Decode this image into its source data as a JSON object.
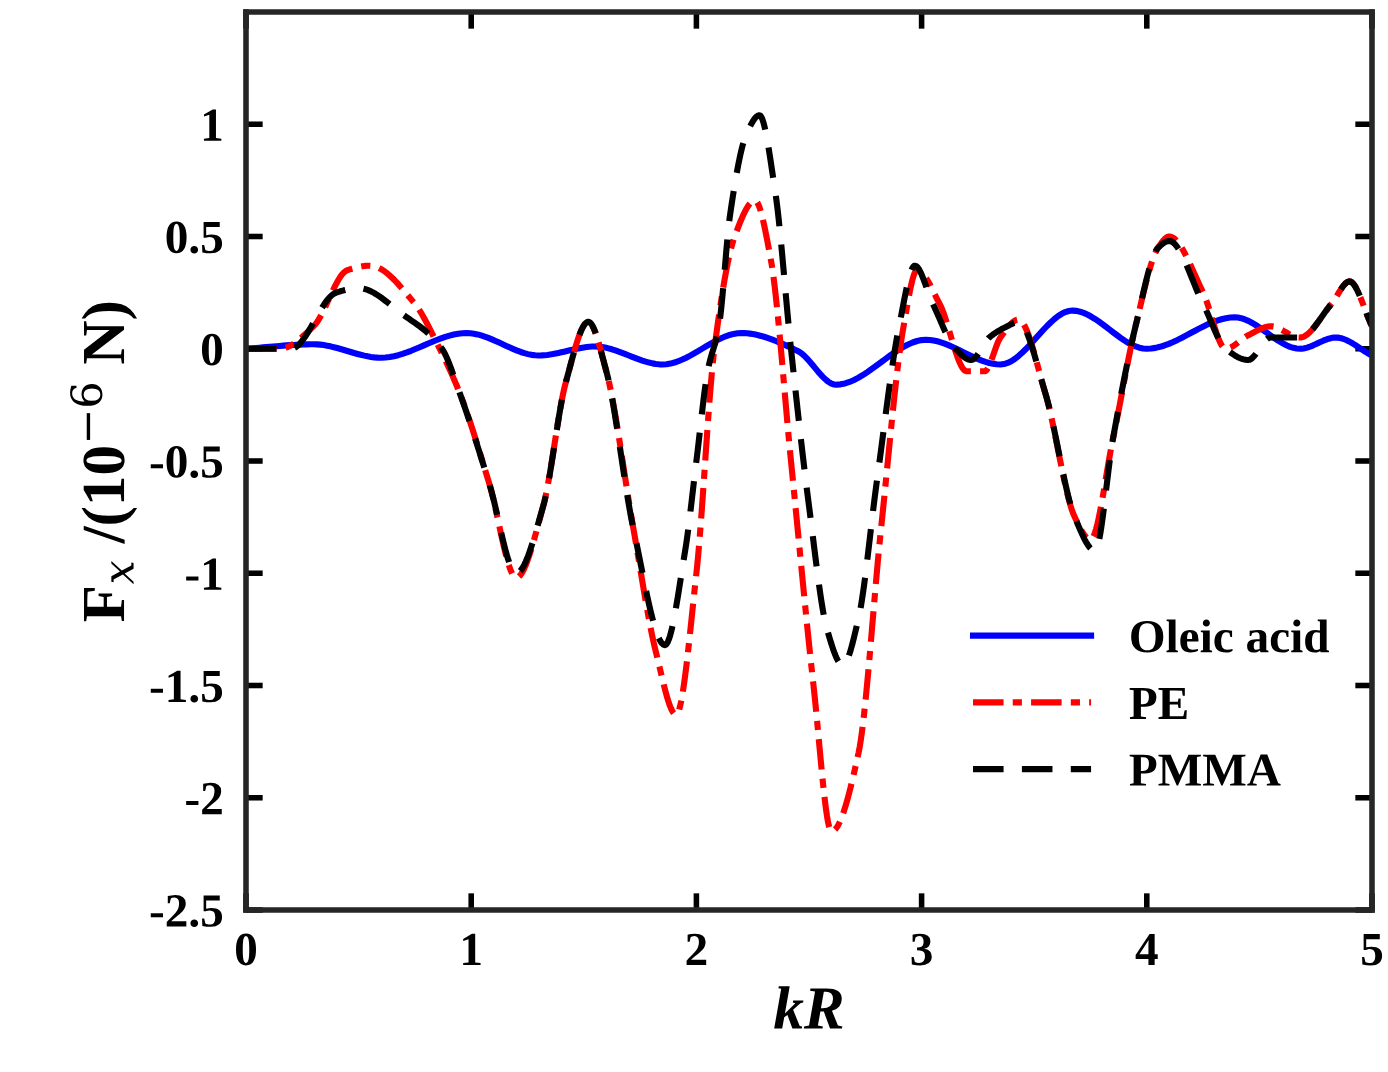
{
  "chart_data": {
    "type": "line",
    "xlabel": "kR",
    "ylabel": "F$_{x}$ /(10$^{−6}$ N)",
    "xlim": [
      0,
      5
    ],
    "xticks": [
      0,
      1,
      2,
      3,
      4,
      5
    ],
    "ylim": [
      -2.5,
      1.5
    ],
    "yticks": [
      -2.5,
      -2,
      -1.5,
      -1,
      -0.5,
      0,
      0.5,
      1
    ],
    "grid": false,
    "legend": "bottom right",
    "marker": "none",
    "series": [
      {
        "name": "Oleic acid",
        "color": "#0000ff",
        "line_style": "solid",
        "x": [
          0,
          0.3,
          0.6,
          0.98,
          1.3,
          1.55,
          1.85,
          2.2,
          2.45,
          2.62,
          3.02,
          3.35,
          3.67,
          4.0,
          4.39,
          4.68,
          4.84,
          5.0
        ],
        "values": [
          0,
          0.02,
          -0.04,
          0.07,
          -0.03,
          0.01,
          -0.07,
          0.07,
          -0.01,
          -0.16,
          0.04,
          -0.07,
          0.17,
          0.0,
          0.14,
          0.0,
          0.05,
          -0.03
        ]
      },
      {
        "name": "PE",
        "color": "#ff0000",
        "line_style": "dashdot",
        "x": [
          0,
          0.15,
          0.3,
          0.45,
          0.55,
          0.75,
          0.85,
          0.95,
          1.08,
          1.2,
          1.32,
          1.42,
          1.52,
          1.6,
          1.72,
          1.82,
          1.91,
          2.0,
          2.08,
          2.17,
          2.26,
          2.33,
          2.42,
          2.52,
          2.6,
          2.72,
          2.82,
          2.92,
          2.98,
          3.08,
          3.2,
          3.28,
          3.35,
          3.43,
          3.55,
          3.68,
          3.75,
          3.85,
          3.95,
          4.05,
          4.1,
          4.25,
          4.35,
          4.45,
          4.55,
          4.68,
          4.82,
          4.9,
          5.0
        ],
        "values": [
          0,
          0,
          0.1,
          0.35,
          0.37,
          0.2,
          0.02,
          -0.2,
          -0.6,
          -1.02,
          -0.7,
          -0.15,
          0.12,
          -0.1,
          -0.8,
          -1.35,
          -1.63,
          -1.0,
          0.0,
          0.5,
          0.66,
          0.4,
          -0.5,
          -1.5,
          -2.15,
          -1.8,
          -0.8,
          0.1,
          0.35,
          0.2,
          -0.1,
          -0.1,
          0.05,
          0.13,
          -0.2,
          -0.75,
          -0.85,
          -0.4,
          0.1,
          0.45,
          0.5,
          0.25,
          0.0,
          0.06,
          0.1,
          0.05,
          0.2,
          0.3,
          0.1
        ]
      },
      {
        "name": "PMMA",
        "color": "#000000",
        "line_style": "dashed",
        "x": [
          0,
          0.2,
          0.4,
          0.5,
          0.7,
          0.87,
          0.95,
          1.08,
          1.2,
          1.32,
          1.42,
          1.52,
          1.6,
          1.72,
          1.86,
          1.95,
          2.0,
          2.05,
          2.1,
          2.15,
          2.22,
          2.28,
          2.35,
          2.42,
          2.5,
          2.58,
          2.65,
          2.72,
          2.8,
          2.9,
          2.97,
          3.05,
          3.15,
          3.22,
          3.3,
          3.38,
          3.43,
          3.55,
          3.68,
          3.77,
          3.85,
          3.95,
          4.05,
          4.1,
          4.25,
          4.35,
          4.45,
          4.55,
          4.68,
          4.82,
          4.9,
          5.0
        ],
        "values": [
          0,
          0,
          0.25,
          0.27,
          0.15,
          0.0,
          -0.2,
          -0.6,
          -1.0,
          -0.7,
          -0.15,
          0.12,
          -0.1,
          -0.8,
          -1.32,
          -0.9,
          -0.5,
          -0.1,
          0.1,
          0.6,
          0.95,
          1.04,
          0.7,
          0.0,
          -0.7,
          -1.25,
          -1.41,
          -1.2,
          -0.6,
          0.1,
          0.37,
          0.2,
          0.0,
          -0.05,
          0.05,
          0.1,
          0.12,
          -0.2,
          -0.75,
          -0.9,
          -0.4,
          0.1,
          0.45,
          0.48,
          0.2,
          0.0,
          -0.05,
          0.05,
          0.05,
          0.2,
          0.3,
          0.1
        ]
      }
    ]
  }
}
